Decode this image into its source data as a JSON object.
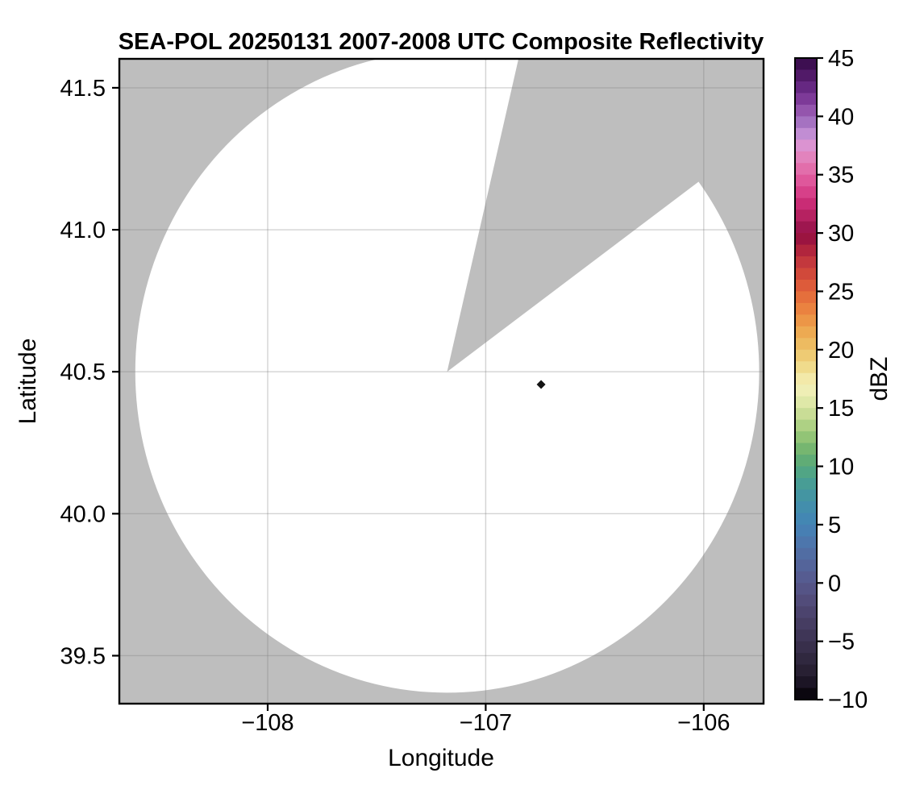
{
  "chart_data": {
    "type": "heatmap",
    "title": "SEA-POL 20250131 2007-2008 UTC Composite Reflectivity",
    "xlabel": "Longitude",
    "ylabel": "Latitude",
    "xlim": [
      -108.6805,
      -105.7256
    ],
    "ylim": [
      39.331,
      41.602
    ],
    "grid": true,
    "x_ticks": [
      {
        "value": -108,
        "label": "−108"
      },
      {
        "value": -107,
        "label": "−107"
      },
      {
        "value": -106,
        "label": "−106"
      }
    ],
    "y_ticks": [
      {
        "value": 39.5,
        "label": "39.5"
      },
      {
        "value": 40.0,
        "label": "40.0"
      },
      {
        "value": 40.5,
        "label": "40.5"
      },
      {
        "value": 41.0,
        "label": "41.0"
      },
      {
        "value": 41.5,
        "label": "41.5"
      }
    ],
    "radar_coverage": {
      "center": {
        "lon": -107.177,
        "lat": 40.5
      },
      "radius_lon_deg": 1.431,
      "radius_lat_deg": 1.13,
      "no_data_sector_azimuth_deg": [
        13.2,
        53.7
      ],
      "coverage_fill_dbz": "below minimum (blank/white)"
    },
    "echo_points": [
      {
        "lon": -106.746,
        "lat": 40.455,
        "marker": "diamond",
        "color": "#141414"
      }
    ],
    "colors": {
      "no_data_background": "#bebebe",
      "coverage": "#ffffff",
      "frame": "#000000",
      "gridline": "rgba(130,130,130,0.35)"
    },
    "colorbar": {
      "label": "dBZ",
      "min": -10,
      "max": 45,
      "band_width_dbz": 1,
      "ticks": [
        {
          "value": 45,
          "label": "45"
        },
        {
          "value": 40,
          "label": "40"
        },
        {
          "value": 35,
          "label": "35"
        },
        {
          "value": 30,
          "label": "30"
        },
        {
          "value": 25,
          "label": "25"
        },
        {
          "value": 20,
          "label": "20"
        },
        {
          "value": 15,
          "label": "15"
        },
        {
          "value": 10,
          "label": "10"
        },
        {
          "value": 5,
          "label": "5"
        },
        {
          "value": 0,
          "label": "0"
        },
        {
          "value": -5,
          "label": "−5"
        },
        {
          "value": -10,
          "label": "−10"
        }
      ],
      "stops": [
        [
          45,
          "#340c48"
        ],
        [
          44,
          "#46125a"
        ],
        [
          43,
          "#5c2276"
        ],
        [
          42,
          "#6f2e8d"
        ],
        [
          41,
          "#8a46a2"
        ],
        [
          40,
          "#9d64b8"
        ],
        [
          39,
          "#ad80c9"
        ],
        [
          38,
          "#d499dc"
        ],
        [
          37,
          "#e18dc6"
        ],
        [
          36,
          "#e378b3"
        ],
        [
          35,
          "#e163a3"
        ],
        [
          34,
          "#dc4b92"
        ],
        [
          33,
          "#d23480"
        ],
        [
          32,
          "#bf2469"
        ],
        [
          31,
          "#ac1f58"
        ],
        [
          30,
          "#8f0d45"
        ],
        [
          29,
          "#a61a3a"
        ],
        [
          28,
          "#bc2f3f"
        ],
        [
          27,
          "#ca403a"
        ],
        [
          26,
          "#d75139"
        ],
        [
          25,
          "#e2653a"
        ],
        [
          24,
          "#e8783d"
        ],
        [
          23,
          "#eb8c42"
        ],
        [
          22,
          "#eca04b"
        ],
        [
          21,
          "#edb359"
        ],
        [
          20,
          "#edc369"
        ],
        [
          19,
          "#efd37f"
        ],
        [
          18,
          "#f1e299"
        ],
        [
          17,
          "#f5f0b9"
        ],
        [
          16,
          "#e9ecb0"
        ],
        [
          15,
          "#d5e39f"
        ],
        [
          14,
          "#bcd78c"
        ],
        [
          13,
          "#a0cb7c"
        ],
        [
          12,
          "#83bc70"
        ],
        [
          11,
          "#68af70"
        ],
        [
          10,
          "#57a87c"
        ],
        [
          9,
          "#4ba18d"
        ],
        [
          8,
          "#45999c"
        ],
        [
          7,
          "#4391a7"
        ],
        [
          6,
          "#428ab0"
        ],
        [
          5,
          "#4383b5"
        ],
        [
          4,
          "#4a7ab0"
        ],
        [
          3,
          "#4f71a7"
        ],
        [
          2,
          "#52689e"
        ],
        [
          1,
          "#556095"
        ],
        [
          0,
          "#56588c"
        ],
        [
          -1,
          "#545080"
        ],
        [
          -2,
          "#4f4874"
        ],
        [
          -3,
          "#494068"
        ],
        [
          -4,
          "#42395c"
        ],
        [
          -5,
          "#3b3251"
        ],
        [
          -6,
          "#342b45"
        ],
        [
          -7,
          "#2c2439"
        ],
        [
          -8,
          "#231c2d"
        ],
        [
          -9,
          "#150e1d"
        ],
        [
          -10,
          "#000000"
        ]
      ]
    }
  }
}
